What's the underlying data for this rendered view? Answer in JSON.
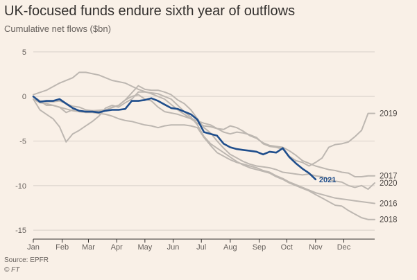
{
  "header": {
    "title": "UK-focused funds endure sixth year of outflows",
    "subtitle": "Cumulative net flows ($bn)"
  },
  "footer": {
    "source": "Source: EPFR",
    "credit": "© FT"
  },
  "colors": {
    "background": "#f9f0e7",
    "highlight": "#1f4e8c",
    "other_years": "#bdb7b1",
    "grid": "#d8d0c8",
    "text": "#66605c"
  },
  "chart_data": {
    "type": "line",
    "xlabel": "",
    "ylabel": "Cumulative net flows ($bn)",
    "x_ticks": [
      "Jan",
      "Feb",
      "Mar",
      "Apr",
      "May",
      "Jun",
      "Jul",
      "Aug",
      "Sep",
      "Oct",
      "Nov",
      "Dec"
    ],
    "x_unit": "week of year",
    "xlim": [
      1,
      53
    ],
    "y_ticks": [
      5,
      0,
      -5,
      -10,
      -15
    ],
    "ylim": [
      -16,
      6
    ],
    "grid": true,
    "highlight_series": "2021",
    "series": [
      {
        "name": "2021",
        "points": [
          [
            1,
            0
          ],
          [
            2,
            -0.6
          ],
          [
            3,
            -0.5
          ],
          [
            4,
            -0.5
          ],
          [
            5,
            -0.3
          ],
          [
            6,
            -0.8
          ],
          [
            7,
            -1.3
          ],
          [
            8,
            -1.6
          ],
          [
            9,
            -1.7
          ],
          [
            10,
            -1.7
          ],
          [
            11,
            -1.8
          ],
          [
            12,
            -1.6
          ],
          [
            13,
            -1.5
          ],
          [
            14,
            -1.5
          ],
          [
            15,
            -1.4
          ],
          [
            16,
            -0.5
          ],
          [
            17,
            -0.5
          ],
          [
            18,
            -0.4
          ],
          [
            19,
            -0.2
          ],
          [
            20,
            -0.5
          ],
          [
            21,
            -0.9
          ],
          [
            22,
            -1.3
          ],
          [
            23,
            -1.4
          ],
          [
            24,
            -1.7
          ],
          [
            25,
            -2.0
          ],
          [
            26,
            -2.6
          ],
          [
            27,
            -4.0
          ],
          [
            28,
            -4.2
          ],
          [
            29,
            -4.4
          ],
          [
            30,
            -5.3
          ],
          [
            31,
            -5.7
          ],
          [
            32,
            -5.9
          ],
          [
            33,
            -6.0
          ],
          [
            34,
            -6.1
          ],
          [
            35,
            -6.2
          ],
          [
            36,
            -6.5
          ],
          [
            37,
            -6.2
          ],
          [
            38,
            -6.3
          ],
          [
            39,
            -5.8
          ],
          [
            40,
            -6.8
          ],
          [
            41,
            -7.5
          ],
          [
            42,
            -8.1
          ],
          [
            43,
            -8.6
          ],
          [
            44,
            -9.3
          ]
        ]
      },
      {
        "name": "2019",
        "points": [
          [
            1,
            0.2
          ],
          [
            3,
            0.7
          ],
          [
            5,
            1.5
          ],
          [
            7,
            2.1
          ],
          [
            8,
            2.7
          ],
          [
            9,
            2.7
          ],
          [
            11,
            2.4
          ],
          [
            13,
            1.8
          ],
          [
            15,
            1.5
          ],
          [
            17,
            0.8
          ],
          [
            19,
            0.3
          ],
          [
            21,
            -0.3
          ],
          [
            23,
            -1.5
          ],
          [
            25,
            -2.5
          ],
          [
            26,
            -3.0
          ],
          [
            27,
            -3.3
          ],
          [
            28,
            -3.4
          ],
          [
            29,
            -3.6
          ],
          [
            30,
            -4.0
          ],
          [
            31,
            -4.2
          ],
          [
            32,
            -4.0
          ],
          [
            33,
            -4.1
          ],
          [
            34,
            -4.3
          ],
          [
            35,
            -4.6
          ],
          [
            36,
            -5.3
          ],
          [
            37,
            -5.6
          ],
          [
            38,
            -5.7
          ],
          [
            39,
            -5.9
          ],
          [
            40,
            -6.7
          ],
          [
            41,
            -7.2
          ],
          [
            42,
            -7.4
          ],
          [
            43,
            -7.8
          ],
          [
            44,
            -7.4
          ],
          [
            45,
            -6.9
          ],
          [
            46,
            -5.7
          ],
          [
            47,
            -5.4
          ],
          [
            48,
            -5.3
          ],
          [
            49,
            -5.1
          ],
          [
            50,
            -4.5
          ],
          [
            51,
            -3.8
          ],
          [
            52,
            -1.9
          ],
          [
            53,
            -1.9
          ]
        ]
      },
      {
        "name": "2017",
        "points": [
          [
            1,
            0
          ],
          [
            2,
            -0.5
          ],
          [
            3,
            -1.0
          ],
          [
            4,
            -1.0
          ],
          [
            5,
            -1.2
          ],
          [
            6,
            -1.8
          ],
          [
            7,
            -1.5
          ],
          [
            8,
            -1.7
          ],
          [
            10,
            -1.6
          ],
          [
            12,
            -1.5
          ],
          [
            14,
            -1.0
          ],
          [
            15,
            -0.4
          ],
          [
            16,
            0
          ],
          [
            17,
            0.2
          ],
          [
            18,
            -0.3
          ],
          [
            19,
            -0.5
          ],
          [
            20,
            -1.2
          ],
          [
            21,
            -1.7
          ],
          [
            23,
            -2.0
          ],
          [
            25,
            -2.5
          ],
          [
            27,
            -3.0
          ],
          [
            28,
            -3.2
          ],
          [
            29,
            -3.6
          ],
          [
            30,
            -3.7
          ],
          [
            31,
            -3.3
          ],
          [
            32,
            -3.5
          ],
          [
            33,
            -3.9
          ],
          [
            34,
            -4.4
          ],
          [
            35,
            -4.7
          ],
          [
            36,
            -5.2
          ],
          [
            37,
            -5.5
          ],
          [
            38,
            -5.6
          ],
          [
            39,
            -5.7
          ],
          [
            40,
            -6.1
          ],
          [
            41,
            -6.6
          ],
          [
            42,
            -7.2
          ],
          [
            43,
            -7.5
          ],
          [
            44,
            -7.8
          ],
          [
            45,
            -8.0
          ],
          [
            46,
            -8.2
          ],
          [
            47,
            -8.3
          ],
          [
            48,
            -8.5
          ],
          [
            49,
            -8.6
          ],
          [
            50,
            -9.0
          ],
          [
            51,
            -9.0
          ],
          [
            52,
            -8.9
          ],
          [
            53,
            -8.9
          ]
        ]
      },
      {
        "name": "2020",
        "points": [
          [
            1,
            0
          ],
          [
            2,
            -0.5
          ],
          [
            3,
            -0.6
          ],
          [
            4,
            -0.6
          ],
          [
            5,
            -0.5
          ],
          [
            6,
            -0.8
          ],
          [
            7,
            -1.1
          ],
          [
            8,
            -1.2
          ],
          [
            9,
            -1.5
          ],
          [
            10,
            -1.6
          ],
          [
            11,
            -1.7
          ],
          [
            12,
            -1.6
          ],
          [
            13,
            -1.2
          ],
          [
            14,
            -1.0
          ],
          [
            15,
            -0.4
          ],
          [
            16,
            0.4
          ],
          [
            17,
            1.2
          ],
          [
            18,
            0.8
          ],
          [
            19,
            0.7
          ],
          [
            20,
            0.7
          ],
          [
            21,
            0.5
          ],
          [
            22,
            0.2
          ],
          [
            23,
            -0.4
          ],
          [
            24,
            -0.8
          ],
          [
            25,
            -1.5
          ],
          [
            26,
            -2.5
          ],
          [
            27,
            -3.5
          ],
          [
            28,
            -4.1
          ],
          [
            29,
            -5.0
          ],
          [
            30,
            -5.8
          ],
          [
            31,
            -6.5
          ],
          [
            32,
            -6.9
          ],
          [
            33,
            -7.3
          ],
          [
            34,
            -7.6
          ],
          [
            35,
            -7.8
          ],
          [
            36,
            -7.9
          ],
          [
            37,
            -8.0
          ],
          [
            38,
            -8.2
          ],
          [
            39,
            -8.5
          ],
          [
            40,
            -8.6
          ],
          [
            41,
            -8.7
          ],
          [
            42,
            -8.8
          ],
          [
            43,
            -8.7
          ],
          [
            44,
            -8.9
          ],
          [
            45,
            -9.0
          ],
          [
            46,
            -9.3
          ],
          [
            47,
            -9.5
          ],
          [
            48,
            -9.6
          ],
          [
            49,
            -10.0
          ],
          [
            50,
            -10.2
          ],
          [
            51,
            -10.0
          ],
          [
            52,
            -10.4
          ],
          [
            53,
            -9.7
          ]
        ]
      },
      {
        "name": "2016",
        "points": [
          [
            1,
            -0.3
          ],
          [
            2,
            -0.7
          ],
          [
            3,
            -0.8
          ],
          [
            4,
            -1.0
          ],
          [
            5,
            -1.2
          ],
          [
            6,
            -1.4
          ],
          [
            7,
            -1.6
          ],
          [
            8,
            -1.7
          ],
          [
            9,
            -1.8
          ],
          [
            10,
            -1.8
          ],
          [
            11,
            -1.9
          ],
          [
            12,
            -2.0
          ],
          [
            13,
            -2.2
          ],
          [
            14,
            -2.5
          ],
          [
            15,
            -2.7
          ],
          [
            16,
            -2.8
          ],
          [
            17,
            -3.0
          ],
          [
            18,
            -3.2
          ],
          [
            19,
            -3.3
          ],
          [
            20,
            -3.5
          ],
          [
            21,
            -3.3
          ],
          [
            22,
            -3.2
          ],
          [
            23,
            -3.2
          ],
          [
            24,
            -3.2
          ],
          [
            25,
            -3.3
          ],
          [
            26,
            -3.5
          ],
          [
            27,
            -4.6
          ],
          [
            28,
            -5.5
          ],
          [
            29,
            -6.3
          ],
          [
            30,
            -6.7
          ],
          [
            31,
            -7.1
          ],
          [
            32,
            -7.4
          ],
          [
            33,
            -7.6
          ],
          [
            34,
            -7.8
          ],
          [
            35,
            -8.0
          ],
          [
            36,
            -8.3
          ],
          [
            37,
            -8.5
          ],
          [
            38,
            -8.9
          ],
          [
            39,
            -9.2
          ],
          [
            40,
            -9.6
          ],
          [
            41,
            -9.9
          ],
          [
            42,
            -10.2
          ],
          [
            43,
            -10.5
          ],
          [
            44,
            -10.8
          ],
          [
            45,
            -11.0
          ],
          [
            46,
            -11.2
          ],
          [
            47,
            -11.4
          ],
          [
            48,
            -11.5
          ],
          [
            49,
            -11.6
          ],
          [
            50,
            -11.7
          ],
          [
            51,
            -11.8
          ],
          [
            52,
            -11.9
          ],
          [
            53,
            -12.0
          ]
        ]
      },
      {
        "name": "2018",
        "points": [
          [
            1,
            -0.3
          ],
          [
            2,
            -1.5
          ],
          [
            3,
            -2.0
          ],
          [
            4,
            -2.5
          ],
          [
            5,
            -3.4
          ],
          [
            6,
            -5.1
          ],
          [
            7,
            -4.2
          ],
          [
            8,
            -3.8
          ],
          [
            9,
            -3.3
          ],
          [
            10,
            -2.8
          ],
          [
            11,
            -2.2
          ],
          [
            12,
            -1.3
          ],
          [
            13,
            -1.0
          ],
          [
            14,
            -1.2
          ],
          [
            15,
            -0.7
          ],
          [
            16,
            -0.3
          ],
          [
            17,
            0.5
          ],
          [
            18,
            0.5
          ],
          [
            19,
            0.4
          ],
          [
            20,
            0.3
          ],
          [
            21,
            0.0
          ],
          [
            22,
            -0.3
          ],
          [
            23,
            -1.0
          ],
          [
            24,
            -1.7
          ],
          [
            25,
            -2.3
          ],
          [
            26,
            -3.2
          ],
          [
            27,
            -4.5
          ],
          [
            28,
            -5.3
          ],
          [
            29,
            -5.8
          ],
          [
            30,
            -6.3
          ],
          [
            31,
            -6.8
          ],
          [
            32,
            -7.3
          ],
          [
            33,
            -7.7
          ],
          [
            34,
            -8.0
          ],
          [
            35,
            -8.2
          ],
          [
            36,
            -8.4
          ],
          [
            37,
            -8.6
          ],
          [
            38,
            -9.0
          ],
          [
            39,
            -9.3
          ],
          [
            40,
            -9.7
          ],
          [
            41,
            -10.0
          ],
          [
            42,
            -10.3
          ],
          [
            43,
            -10.6
          ],
          [
            44,
            -11.0
          ],
          [
            45,
            -11.4
          ],
          [
            46,
            -11.8
          ],
          [
            47,
            -12.2
          ],
          [
            48,
            -12.3
          ],
          [
            49,
            -12.8
          ],
          [
            50,
            -13.2
          ],
          [
            51,
            -13.6
          ],
          [
            52,
            -13.8
          ],
          [
            53,
            -13.8
          ]
        ]
      }
    ]
  }
}
